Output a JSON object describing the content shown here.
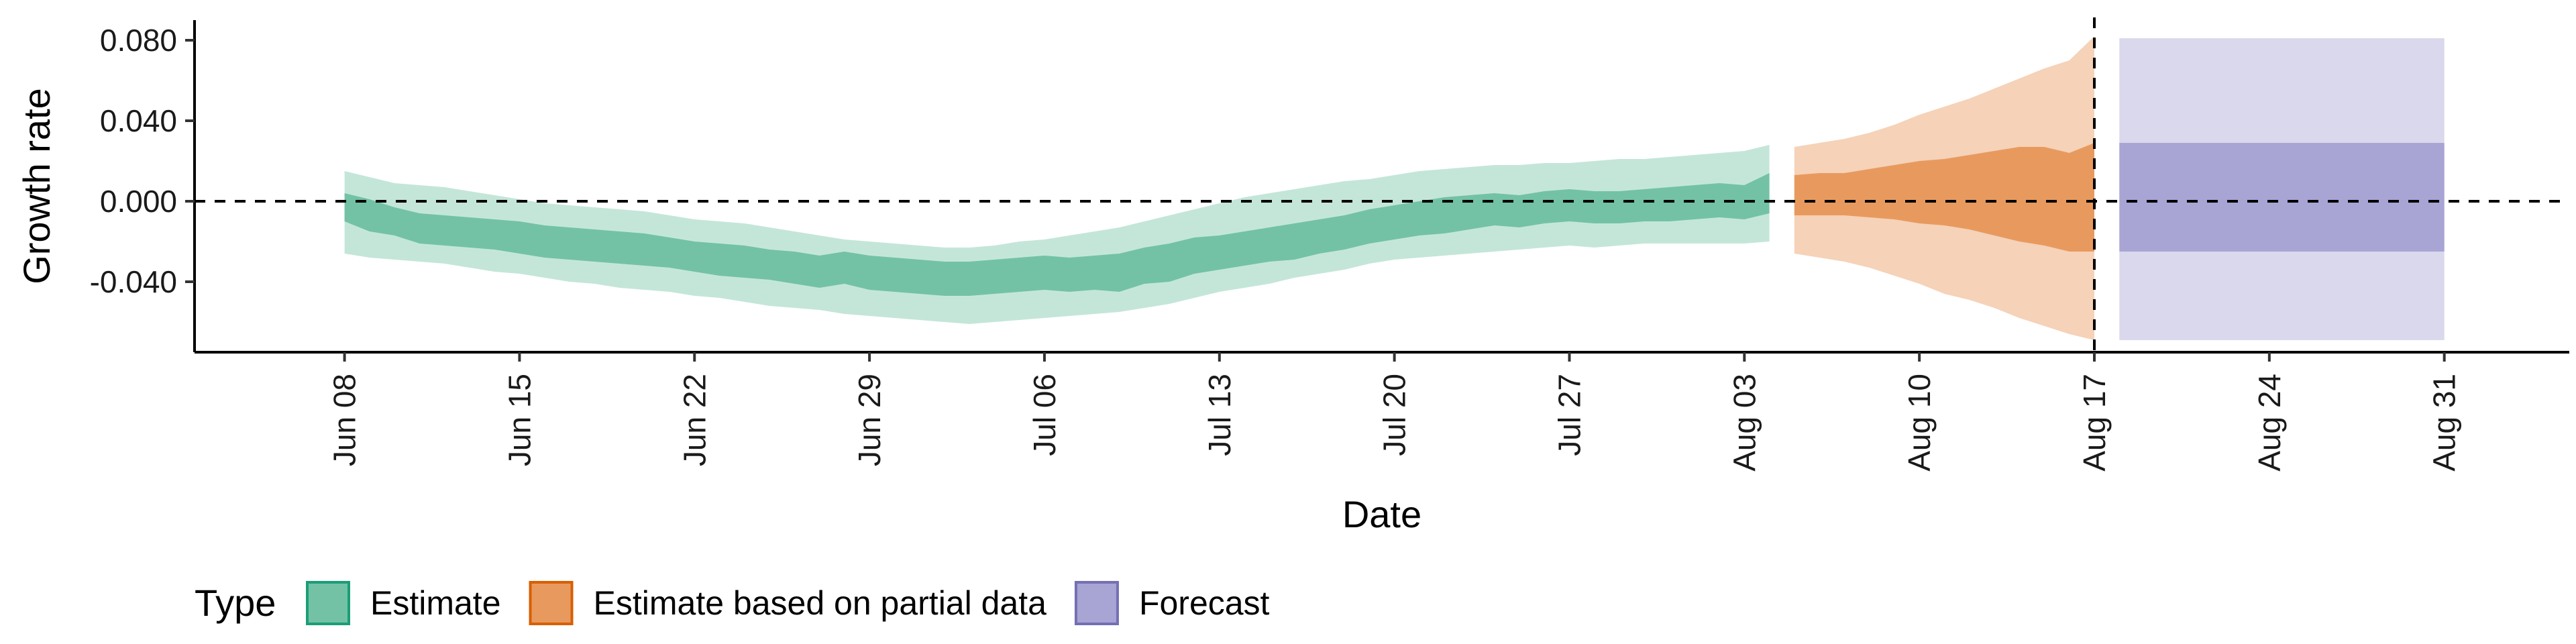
{
  "chart_data": {
    "type": "area",
    "title": "",
    "xlabel": "Date",
    "ylabel": "Growth rate",
    "x_type": "date",
    "xlim": [
      "2020-06-02",
      "2020-09-05"
    ],
    "ylim": [
      -0.075,
      0.09
    ],
    "grid": false,
    "reference_lines": {
      "horizontal_y": 0.0,
      "vertical_x": "2020-08-17",
      "style": "dashed"
    },
    "y_ticks": [
      {
        "value": 0.08,
        "label": "0.080"
      },
      {
        "value": 0.04,
        "label": "0.040"
      },
      {
        "value": 0.0,
        "label": "0.000"
      },
      {
        "value": -0.04,
        "label": "-0.040"
      }
    ],
    "x_ticks": [
      {
        "date": "2020-06-08",
        "label": "Jun 08"
      },
      {
        "date": "2020-06-15",
        "label": "Jun 15"
      },
      {
        "date": "2020-06-22",
        "label": "Jun 22"
      },
      {
        "date": "2020-06-29",
        "label": "Jun 29"
      },
      {
        "date": "2020-07-06",
        "label": "Jul 06"
      },
      {
        "date": "2020-07-13",
        "label": "Jul 13"
      },
      {
        "date": "2020-07-20",
        "label": "Jul 20"
      },
      {
        "date": "2020-07-27",
        "label": "Jul 27"
      },
      {
        "date": "2020-08-03",
        "label": "Aug 03"
      },
      {
        "date": "2020-08-10",
        "label": "Aug 10"
      },
      {
        "date": "2020-08-17",
        "label": "Aug 17"
      },
      {
        "date": "2020-08-24",
        "label": "Aug 24"
      },
      {
        "date": "2020-08-31",
        "label": "Aug 31"
      }
    ],
    "legend": {
      "title": "Type",
      "position": "bottom-left",
      "entries": [
        {
          "label": "Estimate",
          "fill": "#73c2a6",
          "stroke": "#1b9e77"
        },
        {
          "label": "Estimate based on partial data",
          "fill": "#e89a5e",
          "stroke": "#d95f02"
        },
        {
          "label": "Forecast",
          "fill": "#a8a4d4",
          "stroke": "#7570b3"
        }
      ]
    },
    "series": [
      {
        "name": "Estimate",
        "color_inner": "#73c2a6",
        "color_outer": "#c4e6d9",
        "x": [
          "2020-06-08",
          "2020-06-09",
          "2020-06-10",
          "2020-06-11",
          "2020-06-12",
          "2020-06-13",
          "2020-06-14",
          "2020-06-15",
          "2020-06-16",
          "2020-06-17",
          "2020-06-18",
          "2020-06-19",
          "2020-06-20",
          "2020-06-21",
          "2020-06-22",
          "2020-06-23",
          "2020-06-24",
          "2020-06-25",
          "2020-06-26",
          "2020-06-27",
          "2020-06-28",
          "2020-06-29",
          "2020-06-30",
          "2020-07-01",
          "2020-07-02",
          "2020-07-03",
          "2020-07-04",
          "2020-07-05",
          "2020-07-06",
          "2020-07-07",
          "2020-07-08",
          "2020-07-09",
          "2020-07-10",
          "2020-07-11",
          "2020-07-12",
          "2020-07-13",
          "2020-07-14",
          "2020-07-15",
          "2020-07-16",
          "2020-07-17",
          "2020-07-18",
          "2020-07-19",
          "2020-07-20",
          "2020-07-21",
          "2020-07-22",
          "2020-07-23",
          "2020-07-24",
          "2020-07-25",
          "2020-07-26",
          "2020-07-27",
          "2020-07-28",
          "2020-07-29",
          "2020-07-30",
          "2020-07-31",
          "2020-08-01",
          "2020-08-02",
          "2020-08-03",
          "2020-08-04"
        ],
        "lower90": [
          -0.026,
          -0.028,
          -0.029,
          -0.03,
          -0.031,
          -0.033,
          -0.035,
          -0.036,
          -0.038,
          -0.04,
          -0.041,
          -0.043,
          -0.044,
          -0.045,
          -0.047,
          -0.048,
          -0.05,
          -0.052,
          -0.053,
          -0.054,
          -0.056,
          -0.057,
          -0.058,
          -0.059,
          -0.06,
          -0.061,
          -0.06,
          -0.059,
          -0.058,
          -0.057,
          -0.056,
          -0.055,
          -0.053,
          -0.051,
          -0.048,
          -0.045,
          -0.043,
          -0.041,
          -0.038,
          -0.036,
          -0.034,
          -0.031,
          -0.029,
          -0.028,
          -0.027,
          -0.026,
          -0.025,
          -0.024,
          -0.023,
          -0.022,
          -0.023,
          -0.022,
          -0.021,
          -0.021,
          -0.021,
          -0.021,
          -0.021,
          -0.02
        ],
        "lower50": [
          -0.01,
          -0.015,
          -0.017,
          -0.021,
          -0.022,
          -0.023,
          -0.024,
          -0.026,
          -0.028,
          -0.029,
          -0.03,
          -0.031,
          -0.032,
          -0.033,
          -0.035,
          -0.037,
          -0.038,
          -0.039,
          -0.041,
          -0.043,
          -0.041,
          -0.044,
          -0.045,
          -0.046,
          -0.047,
          -0.047,
          -0.046,
          -0.045,
          -0.044,
          -0.045,
          -0.044,
          -0.045,
          -0.041,
          -0.04,
          -0.036,
          -0.034,
          -0.032,
          -0.03,
          -0.029,
          -0.026,
          -0.024,
          -0.021,
          -0.019,
          -0.017,
          -0.016,
          -0.014,
          -0.012,
          -0.013,
          -0.011,
          -0.01,
          -0.011,
          -0.011,
          -0.01,
          -0.01,
          -0.009,
          -0.008,
          -0.009,
          -0.006
        ],
        "upper50": [
          0.004,
          0.001,
          -0.003,
          -0.006,
          -0.007,
          -0.008,
          -0.009,
          -0.01,
          -0.012,
          -0.013,
          -0.014,
          -0.015,
          -0.016,
          -0.018,
          -0.02,
          -0.021,
          -0.022,
          -0.024,
          -0.025,
          -0.027,
          -0.025,
          -0.027,
          -0.028,
          -0.029,
          -0.03,
          -0.03,
          -0.029,
          -0.028,
          -0.027,
          -0.028,
          -0.027,
          -0.026,
          -0.023,
          -0.021,
          -0.018,
          -0.017,
          -0.015,
          -0.013,
          -0.011,
          -0.009,
          -0.007,
          -0.004,
          -0.002,
          0.0,
          0.002,
          0.003,
          0.004,
          0.003,
          0.005,
          0.006,
          0.005,
          0.005,
          0.006,
          0.007,
          0.008,
          0.009,
          0.008,
          0.014
        ],
        "upper90": [
          0.015,
          0.012,
          0.009,
          0.008,
          0.007,
          0.005,
          0.003,
          0.001,
          -0.001,
          -0.002,
          -0.003,
          -0.004,
          -0.005,
          -0.007,
          -0.009,
          -0.01,
          -0.011,
          -0.013,
          -0.015,
          -0.017,
          -0.019,
          -0.02,
          -0.021,
          -0.022,
          -0.023,
          -0.023,
          -0.022,
          -0.02,
          -0.019,
          -0.017,
          -0.015,
          -0.013,
          -0.01,
          -0.007,
          -0.004,
          -0.001,
          0.002,
          0.004,
          0.006,
          0.008,
          0.01,
          0.011,
          0.013,
          0.015,
          0.016,
          0.017,
          0.018,
          0.018,
          0.019,
          0.019,
          0.02,
          0.021,
          0.021,
          0.022,
          0.023,
          0.024,
          0.025,
          0.028
        ]
      },
      {
        "name": "Estimate based on partial data",
        "color_inner": "#e89a5e",
        "color_outer": "#f5d2b8",
        "x": [
          "2020-08-05",
          "2020-08-06",
          "2020-08-07",
          "2020-08-08",
          "2020-08-09",
          "2020-08-10",
          "2020-08-11",
          "2020-08-12",
          "2020-08-13",
          "2020-08-14",
          "2020-08-15",
          "2020-08-16",
          "2020-08-17"
        ],
        "lower90": [
          -0.026,
          -0.028,
          -0.03,
          -0.033,
          -0.037,
          -0.041,
          -0.046,
          -0.049,
          -0.053,
          -0.058,
          -0.062,
          -0.066,
          -0.069
        ],
        "lower50": [
          -0.007,
          -0.007,
          -0.007,
          -0.008,
          -0.009,
          -0.011,
          -0.012,
          -0.014,
          -0.017,
          -0.02,
          -0.022,
          -0.025,
          -0.025
        ],
        "upper50": [
          0.013,
          0.014,
          0.014,
          0.016,
          0.018,
          0.02,
          0.021,
          0.023,
          0.025,
          0.027,
          0.027,
          0.024,
          0.029
        ],
        "upper90": [
          0.027,
          0.029,
          0.031,
          0.034,
          0.038,
          0.043,
          0.047,
          0.051,
          0.056,
          0.061,
          0.066,
          0.07,
          0.082
        ]
      },
      {
        "name": "Forecast",
        "color_inner": "#a8a4d4",
        "color_outer": "#d9d8ec",
        "x": [
          "2020-08-18",
          "2020-08-31"
        ],
        "lower90": [
          -0.069,
          -0.069
        ],
        "lower50": [
          -0.025,
          -0.025
        ],
        "upper50": [
          0.029,
          0.029
        ],
        "upper90": [
          0.081,
          0.081
        ]
      }
    ]
  }
}
